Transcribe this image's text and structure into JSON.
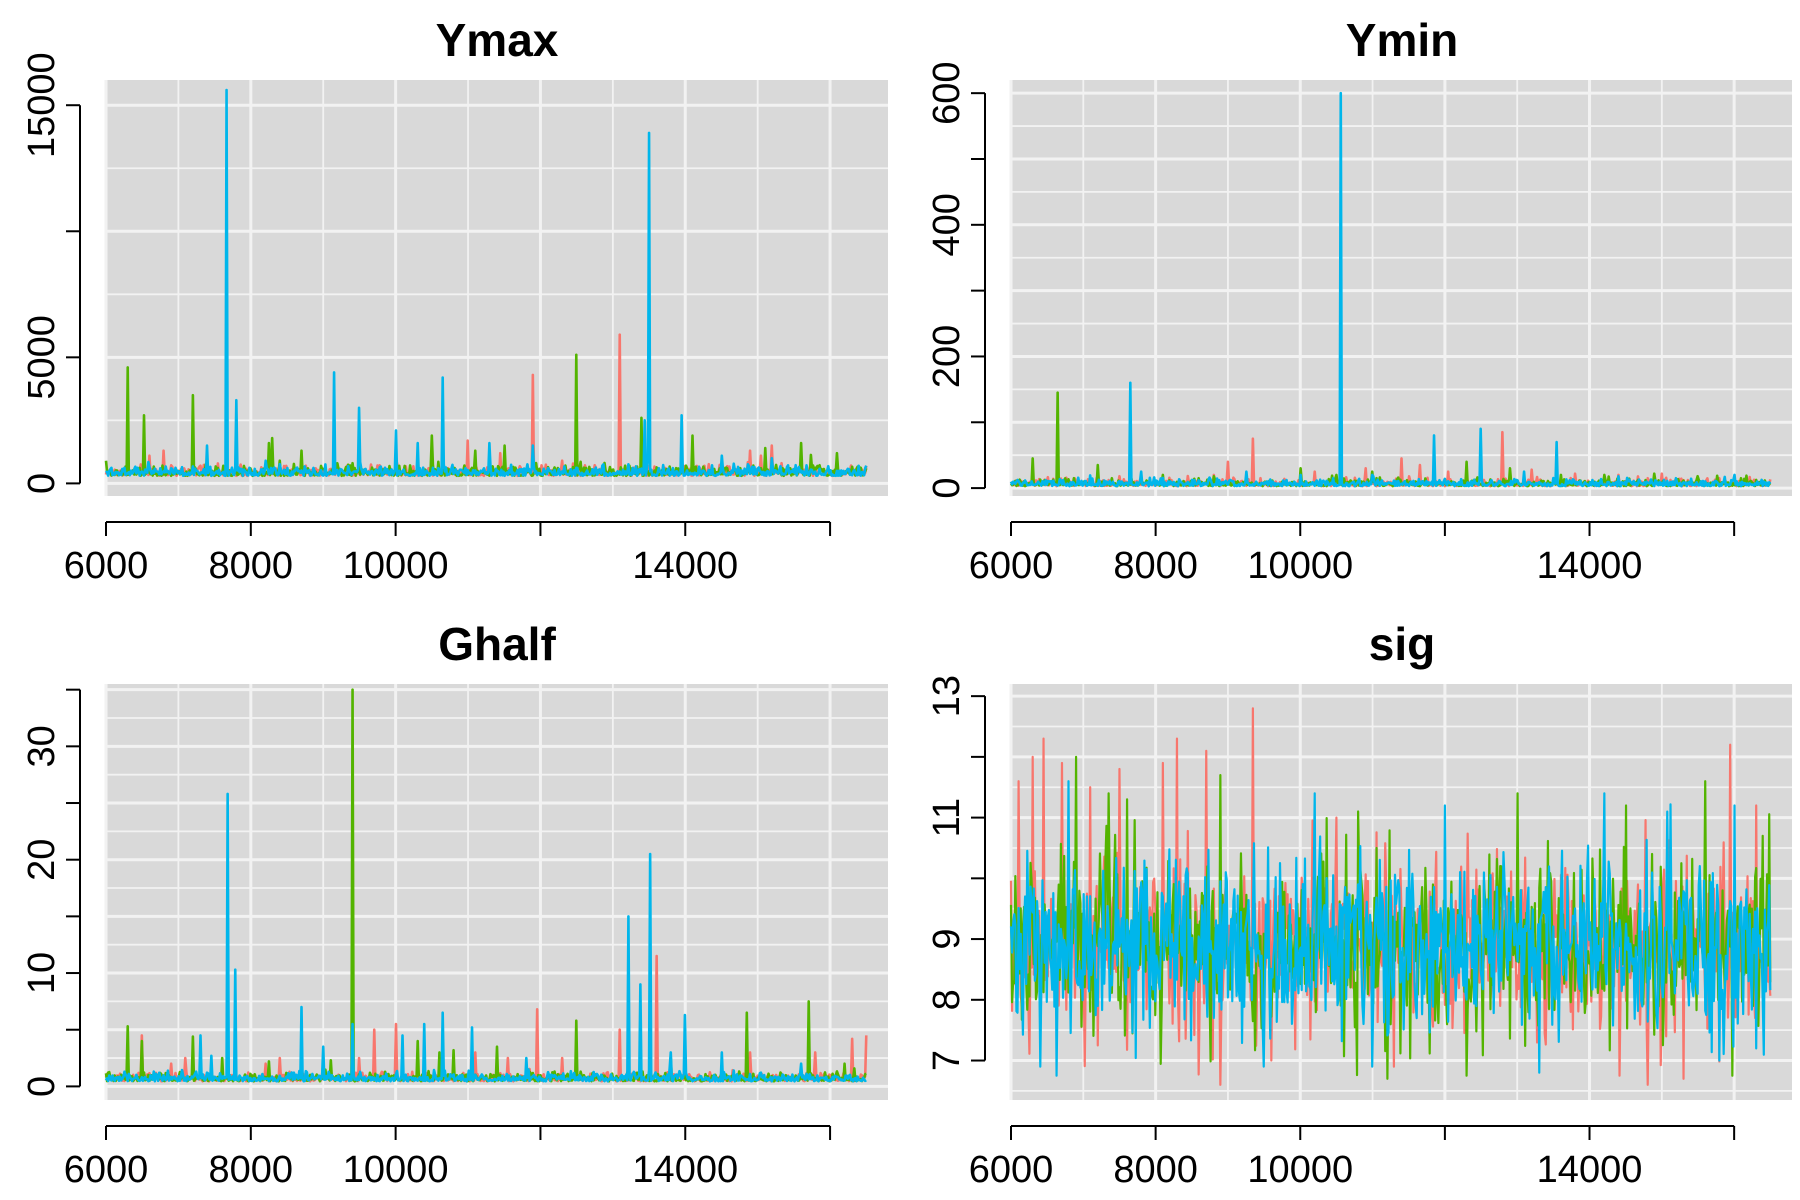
{
  "chart_data": [
    {
      "type": "line",
      "title": "Ymax",
      "xlim": [
        6000,
        16800
      ],
      "ylim": [
        -500,
        16000
      ],
      "x_ticks": [
        6000,
        8000,
        10000,
        12000,
        14000,
        16000
      ],
      "x_tick_labels": [
        "6000",
        "8000",
        "10000",
        "",
        "14000",
        ""
      ],
      "y_ticks": [
        0,
        5000,
        10000,
        15000
      ],
      "y_tick_labels": [
        "0",
        "5000",
        "",
        "15000"
      ],
      "y_minor_ticks": [
        0,
        5000,
        10000,
        15000
      ],
      "colors": [
        "#F8766D",
        "#53B400",
        "#00B6EB"
      ],
      "baseline": 300,
      "noise": 180,
      "seed": 11,
      "series": [
        {
          "color": "#F8766D",
          "spikes": [
            [
              6350,
              500
            ],
            [
              6600,
              1100
            ],
            [
              6800,
              1300
            ],
            [
              7300,
              700
            ],
            [
              8000,
              500
            ],
            [
              8900,
              600
            ],
            [
              9600,
              400
            ],
            [
              10500,
              800
            ],
            [
              11000,
              1700
            ],
            [
              11450,
              1200
            ],
            [
              11900,
              4300
            ],
            [
              12300,
              900
            ],
            [
              13100,
              5900
            ],
            [
              13700,
              700
            ],
            [
              14200,
              600
            ],
            [
              14900,
              1300
            ],
            [
              15050,
              1100
            ],
            [
              15200,
              1500
            ],
            [
              16500,
              700
            ]
          ]
        },
        {
          "color": "#53B400",
          "spikes": [
            [
              6000,
              900
            ],
            [
              6300,
              4600
            ],
            [
              6520,
              2700
            ],
            [
              7200,
              3500
            ],
            [
              7800,
              700
            ],
            [
              8250,
              1600
            ],
            [
              8300,
              1800
            ],
            [
              8400,
              900
            ],
            [
              8700,
              1300
            ],
            [
              9200,
              800
            ],
            [
              9500,
              900
            ],
            [
              10050,
              700
            ],
            [
              10500,
              1900
            ],
            [
              11100,
              1300
            ],
            [
              11500,
              1500
            ],
            [
              12500,
              5100
            ],
            [
              13400,
              2600
            ],
            [
              14100,
              1900
            ],
            [
              14550,
              600
            ],
            [
              15100,
              1400
            ],
            [
              15600,
              1600
            ],
            [
              16100,
              1200
            ],
            [
              16500,
              600
            ]
          ]
        },
        {
          "color": "#00B6EB",
          "spikes": [
            [
              6750,
              600
            ],
            [
              7400,
              1500
            ],
            [
              7660,
              15600
            ],
            [
              7800,
              3300
            ],
            [
              8200,
              900
            ],
            [
              9150,
              4400
            ],
            [
              9500,
              3000
            ],
            [
              10000,
              2100
            ],
            [
              10300,
              1600
            ],
            [
              10650,
              4200
            ],
            [
              11300,
              1600
            ],
            [
              11900,
              1500
            ],
            [
              13440,
              2500
            ],
            [
              13500,
              13900
            ],
            [
              13950,
              2700
            ],
            [
              14500,
              1100
            ],
            [
              15200,
              1000
            ],
            [
              16400,
              700
            ]
          ]
        }
      ]
    },
    {
      "type": "line",
      "title": "Ymin",
      "xlim": [
        6000,
        16800
      ],
      "ylim": [
        -12,
        620
      ],
      "x_ticks": [
        6000,
        8000,
        10000,
        12000,
        14000,
        16000
      ],
      "x_tick_labels": [
        "6000",
        "8000",
        "10000",
        "",
        "14000",
        ""
      ],
      "y_ticks": [
        0,
        100,
        200,
        300,
        400,
        500,
        600
      ],
      "y_tick_labels": [
        "0",
        "",
        "200",
        "",
        "400",
        "",
        "600"
      ],
      "colors": [
        "#F8766D",
        "#53B400",
        "#00B6EB"
      ],
      "baseline": 3,
      "noise": 5,
      "seed": 23,
      "series": [
        {
          "color": "#F8766D",
          "spikes": [
            [
              6500,
              10
            ],
            [
              7500,
              18
            ],
            [
              8800,
              20
            ],
            [
              9000,
              40
            ],
            [
              9350,
              75
            ],
            [
              10200,
              25
            ],
            [
              10900,
              30
            ],
            [
              11400,
              45
            ],
            [
              11650,
              35
            ],
            [
              12050,
              25
            ],
            [
              12800,
              85
            ],
            [
              13200,
              28
            ],
            [
              13800,
              22
            ],
            [
              14400,
              20
            ],
            [
              15000,
              22
            ],
            [
              15800,
              15
            ],
            [
              16300,
              12
            ]
          ]
        },
        {
          "color": "#53B400",
          "spikes": [
            [
              6300,
              45
            ],
            [
              6650,
              145
            ],
            [
              7200,
              35
            ],
            [
              7400,
              15
            ],
            [
              8100,
              20
            ],
            [
              8600,
              15
            ],
            [
              8800,
              18
            ],
            [
              10000,
              30
            ],
            [
              10500,
              20
            ],
            [
              11000,
              25
            ],
            [
              12300,
              40
            ],
            [
              12900,
              30
            ],
            [
              13600,
              20
            ],
            [
              14200,
              20
            ],
            [
              14900,
              22
            ],
            [
              15500,
              18
            ],
            [
              16100,
              15
            ]
          ]
        },
        {
          "color": "#00B6EB",
          "spikes": [
            [
              7650,
              160
            ],
            [
              7800,
              25
            ],
            [
              9250,
              25
            ],
            [
              10000,
              20
            ],
            [
              10450,
              15
            ],
            [
              10560,
              600
            ],
            [
              11000,
              20
            ],
            [
              11850,
              80
            ],
            [
              12500,
              90
            ],
            [
              13100,
              25
            ],
            [
              13550,
              70
            ],
            [
              14400,
              18
            ],
            [
              15200,
              15
            ],
            [
              16000,
              20
            ]
          ]
        }
      ]
    },
    {
      "type": "line",
      "title": "Ghalf",
      "xlim": [
        6000,
        16800
      ],
      "ylim": [
        -1.2,
        35.5
      ],
      "x_ticks": [
        6000,
        8000,
        10000,
        12000,
        14000,
        16000
      ],
      "x_tick_labels": [
        "6000",
        "8000",
        "10000",
        "",
        "14000",
        ""
      ],
      "y_ticks": [
        0,
        5,
        10,
        15,
        20,
        25,
        30,
        35
      ],
      "y_tick_labels": [
        "0",
        "",
        "10",
        "",
        "20",
        "",
        "30",
        ""
      ],
      "colors": [
        "#F8766D",
        "#53B400",
        "#00B6EB"
      ],
      "baseline": 0.45,
      "noise": 0.35,
      "seed": 37,
      "series": [
        {
          "color": "#F8766D",
          "spikes": [
            [
              6500,
              4.5
            ],
            [
              6900,
              2
            ],
            [
              7100,
              2.5
            ],
            [
              8200,
              2
            ],
            [
              8400,
              2.5
            ],
            [
              9000,
              2
            ],
            [
              9500,
              2.5
            ],
            [
              9700,
              5
            ],
            [
              10000,
              5.5
            ],
            [
              10400,
              2
            ],
            [
              11100,
              3
            ],
            [
              11550,
              2.5
            ],
            [
              11950,
              6.8
            ],
            [
              12300,
              2.5
            ],
            [
              13100,
              5
            ],
            [
              13600,
              11.5
            ],
            [
              14000,
              2
            ],
            [
              14900,
              3
            ],
            [
              15800,
              3
            ],
            [
              16300,
              4.2
            ],
            [
              16500,
              4.5
            ]
          ]
        },
        {
          "color": "#53B400",
          "spikes": [
            [
              6300,
              5.3
            ],
            [
              6500,
              4
            ],
            [
              7200,
              4.4
            ],
            [
              7600,
              2.5
            ],
            [
              8250,
              2.2
            ],
            [
              8700,
              2
            ],
            [
              9100,
              2.3
            ],
            [
              9400,
              35
            ],
            [
              10300,
              4
            ],
            [
              10600,
              3
            ],
            [
              10800,
              3.2
            ],
            [
              11400,
              3.5
            ],
            [
              12500,
              5.8
            ],
            [
              13800,
              2.5
            ],
            [
              14850,
              6.5
            ],
            [
              15700,
              7.5
            ],
            [
              16200,
              2
            ]
          ]
        },
        {
          "color": "#00B6EB",
          "spikes": [
            [
              7300,
              4.5
            ],
            [
              7450,
              2.7
            ],
            [
              7680,
              25.8
            ],
            [
              7780,
              10.3
            ],
            [
              8700,
              7
            ],
            [
              9000,
              3.5
            ],
            [
              9400,
              5.5
            ],
            [
              10100,
              4.5
            ],
            [
              10400,
              5.5
            ],
            [
              10650,
              6.5
            ],
            [
              11050,
              5.2
            ],
            [
              11800,
              2.5
            ],
            [
              13220,
              15
            ],
            [
              13380,
              9
            ],
            [
              13520,
              20.5
            ],
            [
              13800,
              3
            ],
            [
              14000,
              6.3
            ],
            [
              14500,
              3
            ],
            [
              15600,
              2
            ],
            [
              16550,
              7.8
            ]
          ]
        }
      ]
    },
    {
      "type": "line",
      "title": "sig",
      "xlim": [
        6000,
        16800
      ],
      "ylim": [
        6.35,
        13.2
      ],
      "x_ticks": [
        6000,
        8000,
        10000,
        12000,
        14000,
        16000
      ],
      "x_tick_labels": [
        "6000",
        "8000",
        "10000",
        "",
        "14000",
        ""
      ],
      "y_ticks": [
        7,
        8,
        9,
        10,
        11,
        12,
        13
      ],
      "y_tick_labels": [
        "7",
        "8",
        "9",
        "",
        "11",
        "",
        "13"
      ],
      "colors": [
        "#F8766D",
        "#53B400",
        "#00B6EB"
      ],
      "mean": 8.9,
      "noise_sd": 0.75,
      "seed": 53,
      "series": [
        {
          "color": "#F8766D",
          "extremes": [
            [
              6100,
              11.6
            ],
            [
              6300,
              12
            ],
            [
              6450,
              12.3
            ],
            [
              6700,
              11.9
            ],
            [
              7100,
              11.5
            ],
            [
              7500,
              11.8
            ],
            [
              8100,
              11.9
            ],
            [
              8300,
              12.3
            ],
            [
              8700,
              12.1
            ],
            [
              8900,
              6.6
            ],
            [
              9350,
              12.8
            ],
            [
              9600,
              7
            ],
            [
              10500,
              11
            ],
            [
              11300,
              6.9
            ],
            [
              14800,
              6.6
            ],
            [
              15300,
              6.7
            ],
            [
              15950,
              12.2
            ],
            [
              16300,
              11.2
            ]
          ]
        },
        {
          "color": "#53B400",
          "extremes": [
            [
              6900,
              12
            ],
            [
              7350,
              11.4
            ],
            [
              7600,
              11.3
            ],
            [
              8900,
              11.7
            ],
            [
              10800,
              11.1
            ],
            [
              11200,
              6.7
            ],
            [
              12300,
              6.75
            ],
            [
              13000,
              11.4
            ],
            [
              14500,
              11.2
            ],
            [
              15600,
              11.6
            ],
            [
              16400,
              10.7
            ]
          ]
        },
        {
          "color": "#00B6EB",
          "extremes": [
            [
              6400,
              6.9
            ],
            [
              6800,
              11.6
            ],
            [
              9500,
              6.9
            ],
            [
              10200,
              11.4
            ],
            [
              11000,
              6.9
            ],
            [
              12000,
              11.2
            ],
            [
              13300,
              6.8
            ],
            [
              14200,
              11.4
            ],
            [
              16000,
              11.2
            ],
            [
              16300,
              7.2
            ]
          ]
        }
      ]
    }
  ]
}
